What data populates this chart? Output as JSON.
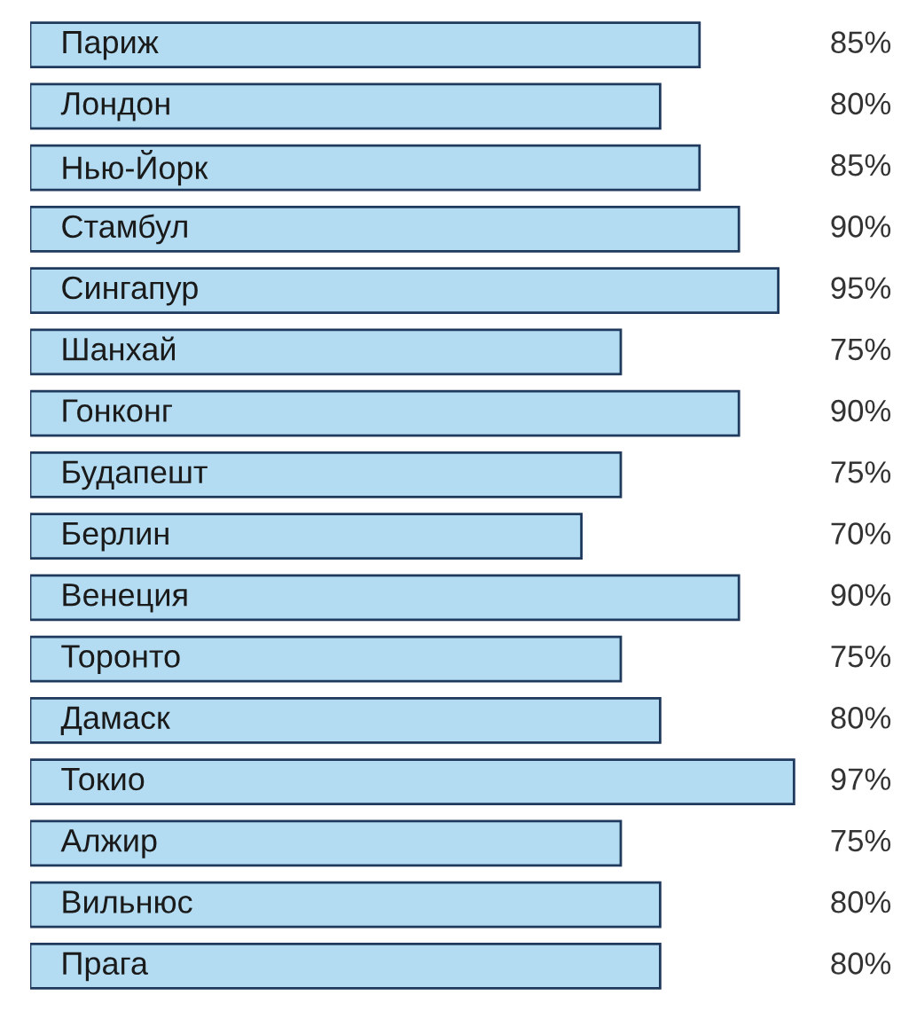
{
  "chart_data": {
    "type": "bar",
    "orientation": "horizontal",
    "categories": [
      "Париж",
      "Лондон",
      "Нью-Йорк",
      "Стамбул",
      "Сингапур",
      "Шанхай",
      "Гонконг",
      "Будапешт",
      "Берлин",
      "Венеция",
      "Торонто",
      "Дамаск",
      "Токио",
      "Алжир",
      "Вильнюс",
      "Прага"
    ],
    "values": [
      85,
      80,
      85,
      90,
      95,
      75,
      90,
      75,
      70,
      90,
      75,
      80,
      97,
      75,
      80,
      80
    ],
    "value_labels": [
      "85%",
      "80%",
      "85%",
      "90%",
      "95%",
      "75%",
      "90%",
      "75%",
      "70%",
      "90%",
      "75%",
      "80%",
      "97%",
      "75%",
      "80%",
      "80%"
    ],
    "color": "#b3dcf2"
  }
}
